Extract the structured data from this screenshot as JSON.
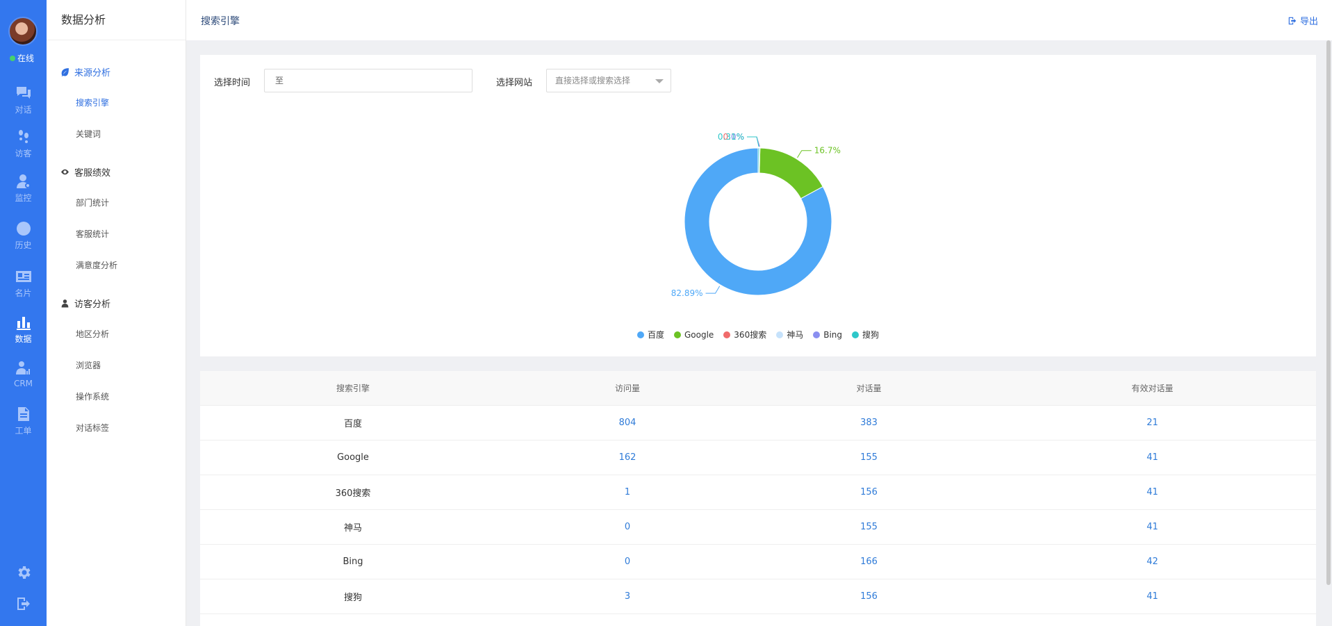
{
  "rail": {
    "status": "在线",
    "items": [
      {
        "label": "对话",
        "icon": "chat-icon"
      },
      {
        "label": "访客",
        "icon": "footprint-icon"
      },
      {
        "label": "监控",
        "icon": "monitor-icon"
      },
      {
        "label": "历史",
        "icon": "clock-icon"
      },
      {
        "label": "名片",
        "icon": "card-icon"
      },
      {
        "label": "数据",
        "icon": "bar-chart-icon"
      },
      {
        "label": "CRM",
        "icon": "crm-icon"
      },
      {
        "label": "工单",
        "icon": "document-icon"
      }
    ],
    "active": "数据"
  },
  "sidebar": {
    "title": "数据分析",
    "groups": [
      {
        "label": "来源分析",
        "icon": "leaf-icon",
        "items": [
          "搜索引擎",
          "关键词"
        ]
      },
      {
        "label": "客服绩效",
        "icon": "eye-icon",
        "items": [
          "部门统计",
          "客服统计",
          "满意度分析"
        ]
      },
      {
        "label": "访客分析",
        "icon": "user-icon",
        "items": [
          "地区分析",
          "浏览器",
          "操作系统",
          "对话标签"
        ]
      }
    ],
    "active_item": "搜索引擎"
  },
  "header": {
    "title": "搜索引擎",
    "export_label": "导出"
  },
  "filters": {
    "time_label": "选择时间",
    "time_value": "至",
    "site_label": "选择网站",
    "site_placeholder": "直接选择或搜索选择"
  },
  "colors": {
    "primary": "#3377ee",
    "baidu": "#4fa8f7",
    "google": "#6cc224",
    "so360": "#f06b6b",
    "shenma": "#c6e2fb",
    "bing": "#8a8ff0",
    "sogou": "#2ec7c9"
  },
  "chart_data": {
    "type": "pie",
    "donut": true,
    "categories": [
      "百度",
      "Google",
      "360搜索",
      "神马",
      "Bing",
      "搜狗"
    ],
    "values": [
      804,
      162,
      1,
      0,
      0,
      3
    ],
    "labels": [
      "82.89%",
      "16.7%",
      "0.1%",
      "0%",
      "0%",
      "0.31%"
    ],
    "legend_position": "bottom-center"
  },
  "table": {
    "headers": [
      "搜索引擎",
      "访问量",
      "对话量",
      "有效对话量"
    ],
    "rows": [
      [
        "百度",
        "804",
        "383",
        "21"
      ],
      [
        "Google",
        "162",
        "155",
        "41"
      ],
      [
        "360搜索",
        "1",
        "156",
        "41"
      ],
      [
        "神马",
        "0",
        "155",
        "41"
      ],
      [
        "Bing",
        "0",
        "166",
        "42"
      ],
      [
        "搜狗",
        "3",
        "156",
        "41"
      ]
    ]
  }
}
